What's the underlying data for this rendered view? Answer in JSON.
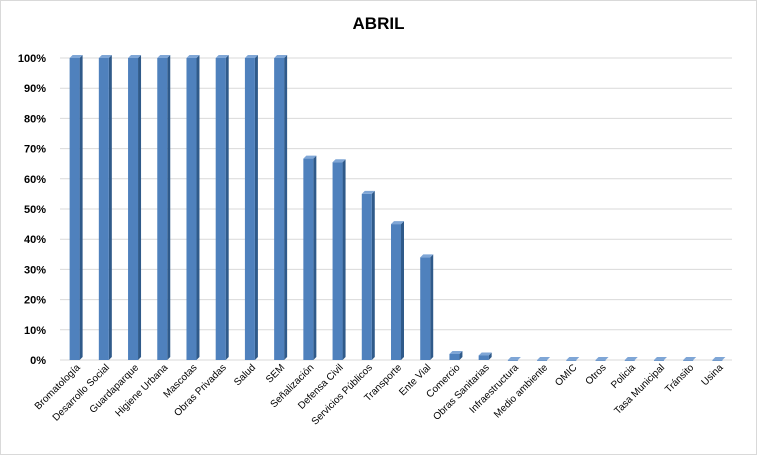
{
  "chart_data": {
    "type": "bar",
    "title": "ABRIL",
    "xlabel": "",
    "ylabel": "",
    "ylim": [
      0,
      100
    ],
    "y_ticks": [
      "0%",
      "10%",
      "20%",
      "30%",
      "40%",
      "50%",
      "60%",
      "70%",
      "80%",
      "90%",
      "100%"
    ],
    "grid": true,
    "bar_color": "#4F81BD",
    "categories": [
      "Bromatología",
      "Desarrollo Social",
      "Guardaparque",
      "Higiene Urbana",
      "Mascotas",
      "Obras Privadas",
      "Salud",
      "SEM",
      "Señalización",
      "Defensa Civil",
      "Servicios Públicos",
      "Transporte",
      "Ente Vial",
      "Comercio",
      "Obras Sanitarias",
      "Infraestructura",
      "Medio ambiente",
      "OMIC",
      "Otros",
      "Policia",
      "Tasa Municipal",
      "Tránsito",
      "Usina"
    ],
    "values": [
      100,
      100,
      100,
      100,
      100,
      100,
      100,
      100,
      66.7,
      65.5,
      55,
      45,
      34,
      2,
      1.5,
      0,
      0,
      0,
      0,
      0,
      0,
      0,
      0
    ]
  }
}
